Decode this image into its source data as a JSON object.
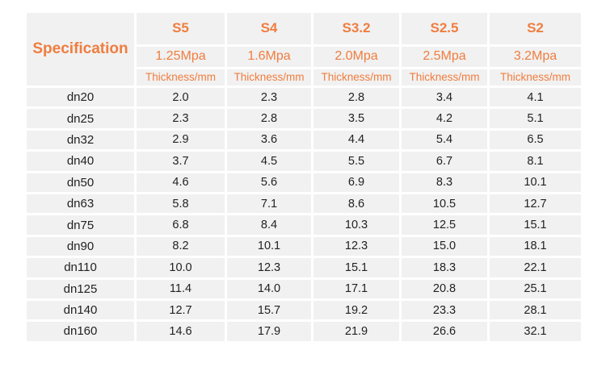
{
  "header": {
    "spec_label": "Specification",
    "columns": [
      {
        "series": "S5",
        "pressure": "1.25Mpa",
        "unit": "Thickness/mm"
      },
      {
        "series": "S4",
        "pressure": "1.6Mpa",
        "unit": "Thickness/mm"
      },
      {
        "series": "S3.2",
        "pressure": "2.0Mpa",
        "unit": "Thickness/mm"
      },
      {
        "series": "S2.5",
        "pressure": "2.5Mpa",
        "unit": "Thickness/mm"
      },
      {
        "series": "S2",
        "pressure": "3.2Mpa",
        "unit": "Thickness/mm"
      }
    ]
  },
  "rows": [
    {
      "spec": "dn20",
      "values": [
        "2.0",
        "2.3",
        "2.8",
        "3.4",
        "4.1"
      ]
    },
    {
      "spec": "dn25",
      "values": [
        "2.3",
        "2.8",
        "3.5",
        "4.2",
        "5.1"
      ]
    },
    {
      "spec": "dn32",
      "values": [
        "2.9",
        "3.6",
        "4.4",
        "5.4",
        "6.5"
      ]
    },
    {
      "spec": "dn40",
      "values": [
        "3.7",
        "4.5",
        "5.5",
        "6.7",
        "8.1"
      ]
    },
    {
      "spec": "dn50",
      "values": [
        "4.6",
        "5.6",
        "6.9",
        "8.3",
        "10.1"
      ]
    },
    {
      "spec": "dn63",
      "values": [
        "5.8",
        "7.1",
        "8.6",
        "10.5",
        "12.7"
      ]
    },
    {
      "spec": "dn75",
      "values": [
        "6.8",
        "8.4",
        "10.3",
        "12.5",
        "15.1"
      ]
    },
    {
      "spec": "dn90",
      "values": [
        "8.2",
        "10.1",
        "12.3",
        "15.0",
        "18.1"
      ]
    },
    {
      "spec": "dn110",
      "values": [
        "10.0",
        "12.3",
        "15.1",
        "18.3",
        "22.1"
      ]
    },
    {
      "spec": "dn125",
      "values": [
        "11.4",
        "14.0",
        "17.1",
        "20.8",
        "25.1"
      ]
    },
    {
      "spec": "dn140",
      "values": [
        "12.7",
        "15.7",
        "19.2",
        "23.3",
        "28.1"
      ]
    },
    {
      "spec": "dn160",
      "values": [
        "14.6",
        "17.9",
        "21.9",
        "26.6",
        "32.1"
      ]
    }
  ],
  "colors": {
    "accent": "#f07d3f",
    "cell_bg": "#f1f1f1",
    "text": "#222222"
  }
}
